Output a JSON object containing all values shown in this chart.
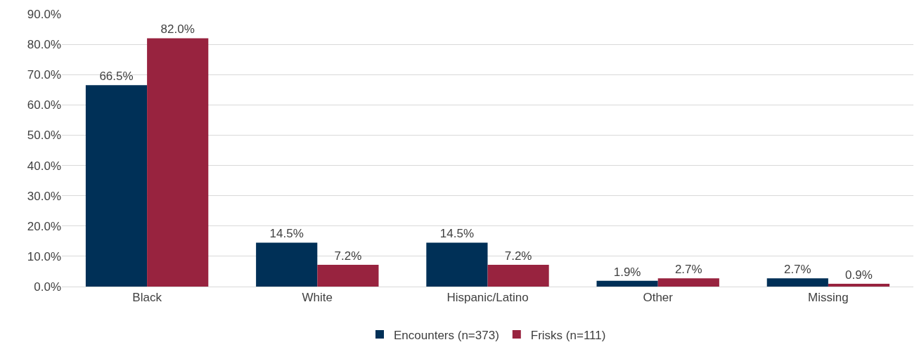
{
  "chart_data": {
    "type": "bar",
    "categories": [
      "Black",
      "White",
      "Hispanic/Latino",
      "Other",
      "Missing"
    ],
    "series": [
      {
        "name": "Encounters (n=373)",
        "color": "#003057",
        "values": [
          66.5,
          14.5,
          14.5,
          1.9,
          2.7
        ],
        "value_labels": [
          "66.5%",
          "14.5%",
          "14.5%",
          "1.9%",
          "2.7%"
        ]
      },
      {
        "name": "Frisks (n=111)",
        "color": "#98233f",
        "values": [
          82.0,
          7.2,
          7.2,
          2.7,
          0.9
        ],
        "value_labels": [
          "82.0%",
          "7.2%",
          "7.2%",
          "2.7%",
          "0.9%"
        ]
      }
    ],
    "ylim": [
      0,
      90
    ],
    "yticks": [
      {
        "value": 0,
        "label": "0.0%"
      },
      {
        "value": 10,
        "label": "10.0%"
      },
      {
        "value": 20,
        "label": "20.0%"
      },
      {
        "value": 30,
        "label": "30.0%"
      },
      {
        "value": 40,
        "label": "40.0%"
      },
      {
        "value": 50,
        "label": "50.0%"
      },
      {
        "value": 60,
        "label": "60.0%"
      },
      {
        "value": 70,
        "label": "70.0%"
      },
      {
        "value": 80,
        "label": "80.0%"
      },
      {
        "value": 90,
        "label": "90.0%"
      }
    ],
    "grid": "y",
    "legend": "bottom"
  }
}
